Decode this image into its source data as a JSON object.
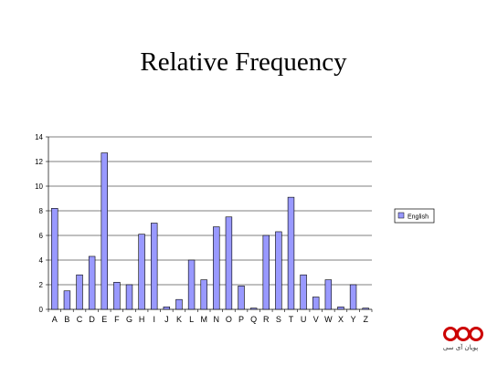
{
  "slide": {
    "title": "Relative Frequency"
  },
  "chart_data": {
    "type": "bar",
    "categories": [
      "A",
      "B",
      "C",
      "D",
      "E",
      "F",
      "G",
      "H",
      "I",
      "J",
      "K",
      "L",
      "M",
      "N",
      "O",
      "P",
      "Q",
      "R",
      "S",
      "T",
      "U",
      "V",
      "W",
      "X",
      "Y",
      "Z"
    ],
    "series": [
      {
        "name": "English",
        "color": "#9999ff",
        "values": [
          8.2,
          1.5,
          2.8,
          4.3,
          12.7,
          2.2,
          2.0,
          6.1,
          7.0,
          0.2,
          0.8,
          4.0,
          2.4,
          6.7,
          7.5,
          1.9,
          0.1,
          6.0,
          6.3,
          9.1,
          2.8,
          1.0,
          2.4,
          0.2,
          2.0,
          0.1
        ]
      }
    ],
    "title": "",
    "xlabel": "",
    "ylabel": "",
    "ylim": [
      0,
      14
    ],
    "yticks": [
      0,
      2,
      4,
      6,
      8,
      10,
      12,
      14
    ],
    "grid": true,
    "legend": "right"
  },
  "logo": {
    "icon": "three-rings-logo-icon",
    "caption": "پویان آی سی",
    "color": "#cc0000"
  }
}
